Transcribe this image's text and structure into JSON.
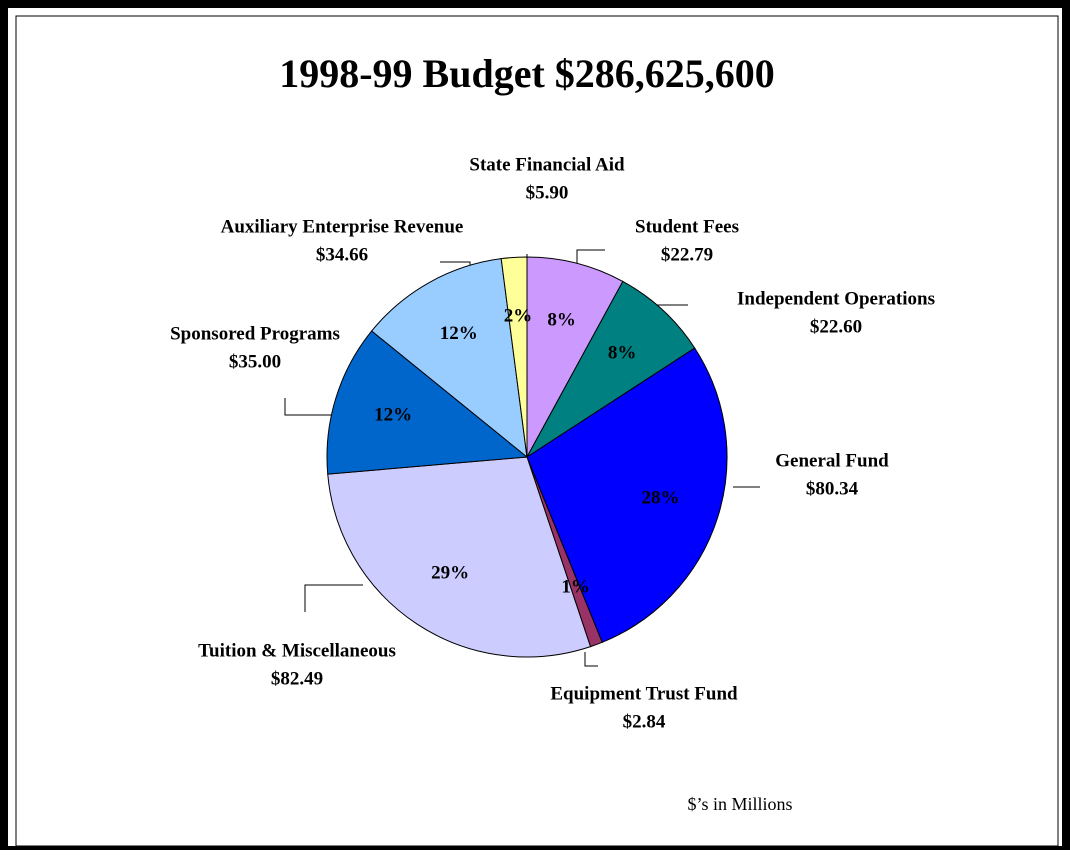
{
  "chart_data": {
    "type": "pie",
    "title": "1998-99 Budget $286,625,600",
    "annotation": "$’s in Millions",
    "categories": [
      "Student Fees",
      "Independent Operations",
      "General Fund",
      "Equipment Trust Fund",
      "Tuition & Miscellaneous",
      "Sponsored Programs",
      "Auxiliary Enterprise Revenue",
      "State Financial Aid"
    ],
    "values": [
      22.79,
      22.6,
      80.34,
      2.84,
      82.49,
      35.0,
      34.66,
      5.9
    ],
    "value_labels": [
      "$22.79",
      "$22.60",
      "$80.34",
      "$2.84",
      "$82.49",
      "$35.00",
      "$34.66",
      "$5.90"
    ],
    "percent_labels": [
      "8%",
      "8%",
      "28%",
      "1%",
      "29%",
      "12%",
      "12%",
      "2%"
    ],
    "colors": [
      "#cc99ff",
      "#008080",
      "#0000ff",
      "#993366",
      "#ccccff",
      "#0066cc",
      "#99ccff",
      "#ffff99"
    ]
  }
}
